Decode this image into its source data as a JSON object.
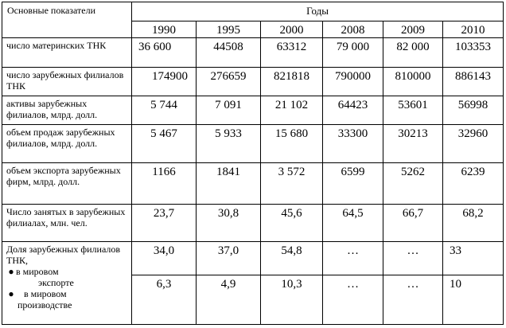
{
  "header": {
    "indicators_label": "Основные показатели",
    "years_label": "Годы",
    "years": [
      "1990",
      "1995",
      "2000",
      "2008",
      "2009",
      "2010"
    ]
  },
  "rows": [
    {
      "label": "число материнских ТНК",
      "values": [
        "36 600",
        "44508",
        "63312",
        "79 000",
        "82 000",
        "103353"
      ]
    },
    {
      "label": "число зарубежных филиалов ТНК",
      "values": [
        "174900",
        "276659",
        "821818",
        "790000",
        "810000",
        "886143"
      ]
    },
    {
      "label": "активы зарубежных филиалов, млрд. долл.",
      "values": [
        "5 744",
        "7 091",
        "21 102",
        "64423",
        "53601",
        "56998"
      ]
    },
    {
      "label": "объем продаж зарубежных филиалов, млрд. долл.",
      "values": [
        "5 467",
        "5 933",
        "15 680",
        "33300",
        "30213",
        "32960"
      ]
    },
    {
      "label": "объем экспорта зарубежных фирм, млрд. долл.",
      "values": [
        "1166",
        "1841",
        "3 572",
        "6599",
        "5262",
        "6239"
      ]
    },
    {
      "label": "Число занятых в зарубежных филиалах, млн. чел.",
      "values": [
        "23,7",
        "30,8",
        "45,6",
        "64,5",
        "66,7",
        "68,2"
      ]
    }
  ],
  "share": {
    "label": "Доля зарубежных филиалов ТНК,",
    "bullet1": "в мировом",
    "sub1": "экспорте",
    "bullet2": "в мировом",
    "sub2": "производстве",
    "values_export": [
      "34,0",
      "37,0",
      "54,8",
      "…",
      "…",
      "33"
    ],
    "values_production": [
      "6,3",
      "4,9",
      "10,3",
      "…",
      "…",
      "10"
    ]
  }
}
